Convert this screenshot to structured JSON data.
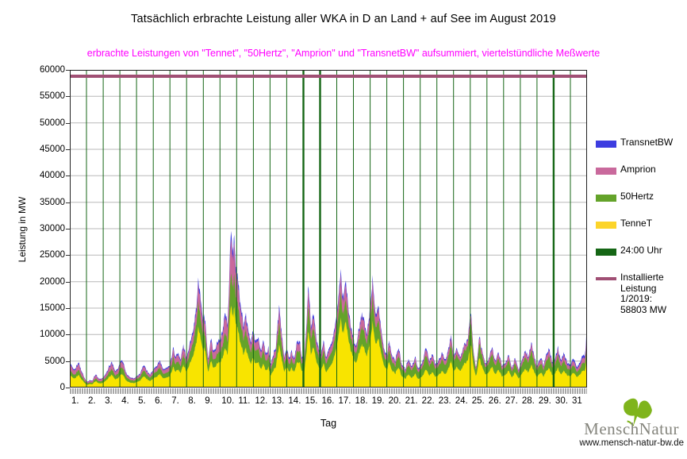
{
  "header": {
    "title": "Tatsächlich erbrachte Leistung aller WKA in D an Land + auf See im August 2019",
    "subtitle": "erbrachte Leistungen von \"Tennet\", \"50Hertz\", \"Amprion\" und \"TransnetBW\" aufsummiert, viertelstündliche Meßwerte",
    "subtitle_color": "#ff00ff"
  },
  "axes": {
    "y_label": "Leistung in MW",
    "x_label": "Tag",
    "y_ticks": [
      0,
      5000,
      10000,
      15000,
      20000,
      25000,
      30000,
      35000,
      40000,
      45000,
      50000,
      55000,
      60000
    ],
    "x_tick_labels": [
      "1.",
      "2.",
      "3.",
      "4.",
      "5.",
      "6.",
      "7.",
      "8.",
      "9.",
      "10.",
      "11.",
      "12.",
      "13.",
      "14.",
      "15.",
      "16.",
      "17.",
      "18.",
      "19.",
      "20.",
      "21.",
      "22.",
      "23.",
      "24.",
      "25.",
      "26.",
      "27.",
      "28.",
      "29.",
      "30.",
      "31"
    ],
    "y_max": 60000
  },
  "colors": {
    "tennet": "#f8e400",
    "hertz50": "#64a32a",
    "amprion": "#c9699c",
    "transnetbw": "#3d3de0",
    "midnight_line": "#156615",
    "installed_line": "#a04f74",
    "grid": "#b8b8b8",
    "border": "#222222",
    "tickstrip": "#a8a8a8"
  },
  "legend": {
    "items": [
      {
        "label": "TransnetBW",
        "color": "#3d3de0",
        "swatch": "block"
      },
      {
        "label": "Amprion",
        "color": "#c9699c",
        "swatch": "block"
      },
      {
        "label": "50Hertz",
        "color": "#64a32a",
        "swatch": "block"
      },
      {
        "label": "TenneT",
        "color": "#fcd42a",
        "swatch": "block"
      },
      {
        "label": "24:00 Uhr",
        "color": "#156615",
        "swatch": "block"
      },
      {
        "label": "Installierte\nLeistung\n1/2019:\n58803 MW",
        "color": "#a04f74",
        "swatch": "line",
        "tall": true
      }
    ]
  },
  "logo": {
    "part1": "Mensch",
    "part2": "Natur",
    "url": "www.mensch-natur-bw.de",
    "leaf_color": "#7fb41c"
  },
  "chart_data": {
    "type": "area",
    "stacked": true,
    "title": "Tatsächlich erbrachte Leistung aller WKA in D an Land + auf See im August 2019",
    "xlabel": "Tag",
    "ylabel": "Leistung in MW",
    "unit": "MW",
    "x_unit": "Tag im August 2019 (viertelstündliche Meßwerte)",
    "xlim": [
      0,
      31
    ],
    "ylim": [
      0,
      60000
    ],
    "grid": true,
    "legend_position": "right-outside",
    "installed_capacity_mw": 58803,
    "installed_capacity_label": "Installierte Leistung 1/2019: 58803 MW",
    "midnight_lines_at_days": "every integer day 1..30",
    "thick_midnight_lines": [
      14,
      15,
      29
    ],
    "stack_order_bottom_to_top": [
      "TenneT",
      "50Hertz",
      "Amprion",
      "TransnetBW"
    ],
    "total_keypoints_day_mw": [
      [
        0,
        4500
      ],
      [
        0.15,
        3800
      ],
      [
        0.3,
        3300
      ],
      [
        0.5,
        4800
      ],
      [
        0.65,
        3600
      ],
      [
        0.8,
        2400
      ],
      [
        1,
        1100
      ],
      [
        1.2,
        1400
      ],
      [
        1.35,
        1300
      ],
      [
        1.55,
        2600
      ],
      [
        1.7,
        1800
      ],
      [
        1.9,
        1600
      ],
      [
        2.1,
        2300
      ],
      [
        2.3,
        3600
      ],
      [
        2.5,
        5000
      ],
      [
        2.7,
        3200
      ],
      [
        2.9,
        3400
      ],
      [
        3.05,
        5400
      ],
      [
        3.2,
        4600
      ],
      [
        3.4,
        2600
      ],
      [
        3.6,
        1900
      ],
      [
        3.8,
        1700
      ],
      [
        4,
        2100
      ],
      [
        4.2,
        2600
      ],
      [
        4.45,
        4300
      ],
      [
        4.6,
        3200
      ],
      [
        4.8,
        2500
      ],
      [
        5,
        3300
      ],
      [
        5.2,
        4200
      ],
      [
        5.4,
        5100
      ],
      [
        5.6,
        3400
      ],
      [
        5.8,
        3800
      ],
      [
        6,
        4200
      ],
      [
        6.2,
        7300
      ],
      [
        6.35,
        5600
      ],
      [
        6.5,
        6800
      ],
      [
        6.65,
        5200
      ],
      [
        6.8,
        8200
      ],
      [
        7,
        5600
      ],
      [
        7.2,
        8500
      ],
      [
        7.4,
        11000
      ],
      [
        7.55,
        14500
      ],
      [
        7.7,
        21000
      ],
      [
        7.8,
        18500
      ],
      [
        7.95,
        14000
      ],
      [
        8.1,
        13200
      ],
      [
        8.3,
        5200
      ],
      [
        8.45,
        9600
      ],
      [
        8.6,
        6800
      ],
      [
        8.75,
        8000
      ],
      [
        8.9,
        8800
      ],
      [
        9.05,
        9500
      ],
      [
        9.15,
        10500
      ],
      [
        9.3,
        13800
      ],
      [
        9.45,
        11500
      ],
      [
        9.55,
        20000
      ],
      [
        9.65,
        29800
      ],
      [
        9.75,
        25500
      ],
      [
        9.85,
        27500
      ],
      [
        9.95,
        22500
      ],
      [
        10.1,
        19000
      ],
      [
        10.25,
        15500
      ],
      [
        10.4,
        12000
      ],
      [
        10.55,
        14000
      ],
      [
        10.7,
        10500
      ],
      [
        10.85,
        9000
      ],
      [
        11,
        10800
      ],
      [
        11.15,
        8500
      ],
      [
        11.3,
        9800
      ],
      [
        11.45,
        7000
      ],
      [
        11.6,
        8800
      ],
      [
        11.75,
        6200
      ],
      [
        11.9,
        7400
      ],
      [
        12.05,
        4600
      ],
      [
        12.2,
        6200
      ],
      [
        12.35,
        8000
      ],
      [
        12.55,
        15800
      ],
      [
        12.7,
        10500
      ],
      [
        12.85,
        5600
      ],
      [
        13,
        7600
      ],
      [
        13.15,
        5400
      ],
      [
        13.3,
        6800
      ],
      [
        13.45,
        5200
      ],
      [
        13.6,
        8200
      ],
      [
        13.75,
        9400
      ],
      [
        13.9,
        5800
      ],
      [
        14.05,
        5200
      ],
      [
        14.2,
        12500
      ],
      [
        14.3,
        20400
      ],
      [
        14.45,
        11500
      ],
      [
        14.6,
        14200
      ],
      [
        14.75,
        10000
      ],
      [
        14.9,
        7800
      ],
      [
        15.05,
        6300
      ],
      [
        15.2,
        9200
      ],
      [
        15.35,
        5600
      ],
      [
        15.5,
        6800
      ],
      [
        15.65,
        7800
      ],
      [
        15.8,
        10500
      ],
      [
        16,
        13500
      ],
      [
        16.1,
        17500
      ],
      [
        16.25,
        21000
      ],
      [
        16.4,
        16500
      ],
      [
        16.55,
        20500
      ],
      [
        16.7,
        15500
      ],
      [
        16.85,
        11500
      ],
      [
        17,
        9000
      ],
      [
        17.15,
        7800
      ],
      [
        17.3,
        10500
      ],
      [
        17.5,
        13800
      ],
      [
        17.65,
        12500
      ],
      [
        17.8,
        10000
      ],
      [
        17.95,
        13000
      ],
      [
        18.15,
        20000
      ],
      [
        18.3,
        13500
      ],
      [
        18.5,
        15500
      ],
      [
        18.65,
        11000
      ],
      [
        18.8,
        7800
      ],
      [
        19,
        6000
      ],
      [
        19.15,
        9000
      ],
      [
        19.3,
        6200
      ],
      [
        19.5,
        5000
      ],
      [
        19.7,
        7600
      ],
      [
        19.9,
        4400
      ],
      [
        20.1,
        3400
      ],
      [
        20.3,
        5600
      ],
      [
        20.5,
        4000
      ],
      [
        20.7,
        5800
      ],
      [
        20.9,
        3400
      ],
      [
        21.1,
        4600
      ],
      [
        21.35,
        7600
      ],
      [
        21.55,
        5000
      ],
      [
        21.75,
        6400
      ],
      [
        21.9,
        4200
      ],
      [
        22.1,
        5200
      ],
      [
        22.3,
        6600
      ],
      [
        22.5,
        5000
      ],
      [
        22.65,
        6800
      ],
      [
        22.85,
        9600
      ],
      [
        23,
        6200
      ],
      [
        23.2,
        7200
      ],
      [
        23.4,
        5600
      ],
      [
        23.6,
        7800
      ],
      [
        23.85,
        9200
      ],
      [
        24.05,
        14500
      ],
      [
        24.2,
        6500
      ],
      [
        24.35,
        3600
      ],
      [
        24.55,
        9500
      ],
      [
        24.7,
        7200
      ],
      [
        24.9,
        4600
      ],
      [
        25.1,
        5600
      ],
      [
        25.3,
        7400
      ],
      [
        25.5,
        5000
      ],
      [
        25.7,
        6600
      ],
      [
        25.9,
        4200
      ],
      [
        26.1,
        4600
      ],
      [
        26.3,
        6200
      ],
      [
        26.5,
        3600
      ],
      [
        26.7,
        5600
      ],
      [
        26.9,
        3200
      ],
      [
        27.1,
        5200
      ],
      [
        27.3,
        7000
      ],
      [
        27.5,
        5600
      ],
      [
        27.65,
        8700
      ],
      [
        27.8,
        6200
      ],
      [
        28,
        4200
      ],
      [
        28.2,
        5600
      ],
      [
        28.4,
        4200
      ],
      [
        28.6,
        6600
      ],
      [
        28.75,
        7300
      ],
      [
        28.9,
        4700
      ],
      [
        29.1,
        5600
      ],
      [
        29.25,
        7600
      ],
      [
        29.45,
        5200
      ],
      [
        29.6,
        6800
      ],
      [
        29.8,
        4800
      ],
      [
        30,
        4200
      ],
      [
        30.2,
        5600
      ],
      [
        30.4,
        3700
      ],
      [
        30.6,
        5200
      ],
      [
        30.8,
        6200
      ],
      [
        30.88,
        6500
      ],
      [
        30.95,
        8500
      ],
      [
        31,
        15300
      ]
    ],
    "daily_shares": {
      "tennet": [
        0.5,
        0.48,
        0.5,
        0.48,
        0.5,
        0.5,
        0.52,
        0.56,
        0.54,
        0.52,
        0.54,
        0.5,
        0.52,
        0.54,
        0.55,
        0.5,
        0.62,
        0.58,
        0.6,
        0.52,
        0.45,
        0.45,
        0.48,
        0.55,
        0.58,
        0.5,
        0.52,
        0.5,
        0.5,
        0.48,
        0.52
      ],
      "hertz50": [
        0.2,
        0.22,
        0.22,
        0.26,
        0.26,
        0.24,
        0.24,
        0.23,
        0.22,
        0.2,
        0.24,
        0.28,
        0.26,
        0.24,
        0.25,
        0.28,
        0.2,
        0.24,
        0.22,
        0.28,
        0.35,
        0.35,
        0.32,
        0.3,
        0.28,
        0.32,
        0.3,
        0.32,
        0.3,
        0.3,
        0.24
      ],
      "amprion": [
        0.24,
        0.24,
        0.22,
        0.2,
        0.18,
        0.2,
        0.19,
        0.16,
        0.19,
        0.23,
        0.17,
        0.17,
        0.17,
        0.17,
        0.15,
        0.17,
        0.14,
        0.14,
        0.14,
        0.15,
        0.15,
        0.15,
        0.15,
        0.12,
        0.11,
        0.14,
        0.14,
        0.14,
        0.15,
        0.16,
        0.16
      ],
      "transnetbw": [
        0.06,
        0.06,
        0.06,
        0.06,
        0.06,
        0.06,
        0.05,
        0.05,
        0.05,
        0.05,
        0.05,
        0.05,
        0.05,
        0.05,
        0.05,
        0.05,
        0.04,
        0.04,
        0.04,
        0.05,
        0.05,
        0.05,
        0.05,
        0.03,
        0.03,
        0.04,
        0.04,
        0.04,
        0.05,
        0.06,
        0.08
      ]
    }
  }
}
